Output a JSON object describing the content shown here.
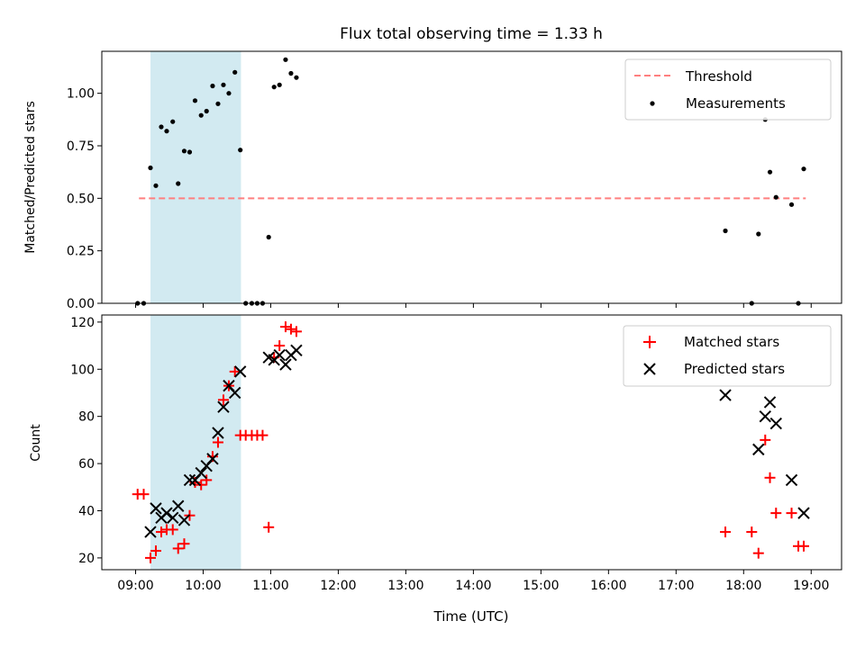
{
  "title": "Flux total observing time = 1.33 h",
  "chart_data": [
    {
      "type": "scatter",
      "panel": "top",
      "ylabel": "Matched/Predicted stars",
      "x_unit": "hours UTC",
      "xlim": [
        8.5,
        19.45
      ],
      "ylim": [
        0,
        1.2
      ],
      "yticks": [
        0.0,
        0.25,
        0.5,
        0.75,
        1.0
      ],
      "ytick_labels": [
        "0.00",
        "0.25",
        "0.50",
        "0.75",
        "1.00"
      ],
      "shaded_span": [
        9.22,
        10.56
      ],
      "threshold": {
        "name": "Threshold",
        "value": 0.5,
        "x": [
          9.05,
          18.92
        ],
        "color": "#ff7f7f"
      },
      "series": [
        {
          "name": "Measurements",
          "color": "#000000",
          "x": [
            9.03,
            9.12,
            9.22,
            9.3,
            9.38,
            9.46,
            9.55,
            9.63,
            9.72,
            9.8,
            9.88,
            9.97,
            10.05,
            10.14,
            10.22,
            10.3,
            10.38,
            10.47,
            10.55,
            10.63,
            10.72,
            10.8,
            10.88,
            10.97,
            11.05,
            11.13,
            11.22,
            11.3,
            11.38,
            17.73,
            18.12,
            18.22,
            18.32,
            18.39,
            18.48,
            18.71,
            18.81,
            18.89
          ],
          "y": [
            0,
            0,
            0.645,
            0.56,
            0.84,
            0.82,
            0.865,
            0.57,
            0.725,
            0.72,
            0.965,
            0.895,
            0.915,
            1.035,
            0.95,
            1.04,
            1.0,
            1.1,
            0.73,
            0,
            0,
            0,
            0,
            0.315,
            1.03,
            1.04,
            1.16,
            1.095,
            1.075,
            0.345,
            0,
            0.33,
            0.875,
            0.625,
            0.505,
            0.47,
            0,
            0.64
          ]
        }
      ]
    },
    {
      "type": "scatter",
      "panel": "bottom",
      "xlabel": "Time (UTC)",
      "ylabel": "Count",
      "xlim": [
        8.5,
        19.45
      ],
      "ylim": [
        15,
        123
      ],
      "yticks": [
        20,
        40,
        60,
        80,
        100,
        120
      ],
      "ytick_labels": [
        "20",
        "40",
        "60",
        "80",
        "100",
        "120"
      ],
      "xticks": [
        9,
        10,
        11,
        12,
        13,
        14,
        15,
        16,
        17,
        18,
        19
      ],
      "xtick_labels": [
        "09:00",
        "10:00",
        "11:00",
        "12:00",
        "13:00",
        "14:00",
        "15:00",
        "16:00",
        "17:00",
        "18:00",
        "19:00"
      ],
      "shaded_span": [
        9.22,
        10.56
      ],
      "series": [
        {
          "name": "Matched stars",
          "marker": "plus",
          "color": "#ff0000",
          "x": [
            9.03,
            9.12,
            9.22,
            9.3,
            9.38,
            9.46,
            9.55,
            9.63,
            9.72,
            9.8,
            9.88,
            9.97,
            10.05,
            10.14,
            10.22,
            10.3,
            10.38,
            10.47,
            10.55,
            10.63,
            10.72,
            10.8,
            10.88,
            10.97,
            11.05,
            11.13,
            11.22,
            11.3,
            11.38,
            17.73,
            18.12,
            18.22,
            18.32,
            18.39,
            18.48,
            18.71,
            18.81,
            18.89
          ],
          "y": [
            47,
            47,
            20,
            23,
            31,
            32,
            32,
            24,
            26,
            38,
            52,
            51,
            53,
            63,
            69,
            87,
            93,
            99,
            72,
            72,
            72,
            72,
            72,
            33,
            105,
            110,
            118,
            117,
            116,
            31,
            31,
            22,
            70,
            54,
            39,
            39,
            25,
            25
          ]
        },
        {
          "name": "Predicted stars",
          "marker": "x",
          "color": "#000000",
          "x": [
            9.22,
            9.3,
            9.38,
            9.46,
            9.55,
            9.63,
            9.72,
            9.8,
            9.88,
            9.97,
            10.05,
            10.14,
            10.22,
            10.3,
            10.38,
            10.47,
            10.55,
            10.97,
            11.05,
            11.13,
            11.22,
            11.3,
            11.38,
            17.73,
            18.22,
            18.32,
            18.39,
            18.48,
            18.71,
            18.89
          ],
          "y": [
            31,
            41,
            37,
            39,
            37,
            42,
            36,
            53,
            53,
            56,
            59,
            62,
            73,
            84,
            93,
            90,
            99,
            105,
            104,
            106,
            102,
            106,
            108,
            89,
            66,
            80,
            86,
            77,
            53,
            39
          ]
        }
      ]
    }
  ]
}
